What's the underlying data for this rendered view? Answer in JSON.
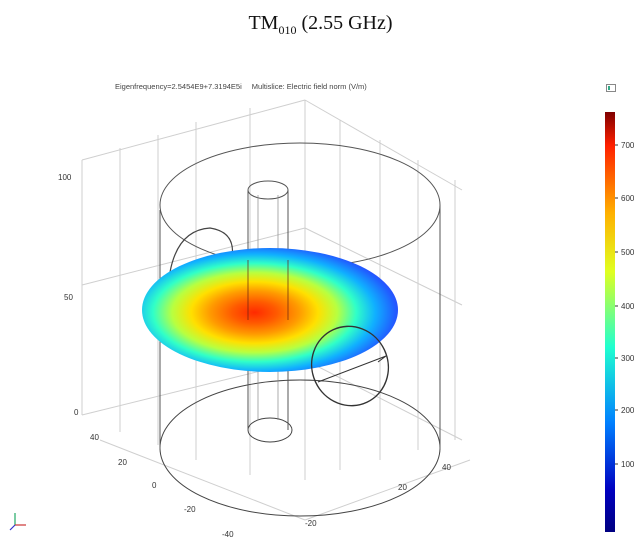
{
  "title": {
    "mode": "TM",
    "subscript": "010",
    "freq": " (2.55 GHz)"
  },
  "plot_header": {
    "eigenfrequency": "Eigenfrequency=2.5454E9+7.3194E5i",
    "multislice": "Multislice: Electric field norm (V/m)"
  },
  "z_axis_ticks": [
    "100",
    "50",
    "0"
  ],
  "x_axis_ticks": [
    "40",
    "20",
    "0",
    "-20",
    "-40"
  ],
  "y_axis_ticks": [
    "40",
    "20",
    "-20"
  ],
  "colorbar": {
    "ticks": [
      "700",
      "600",
      "500",
      "400",
      "300",
      "200",
      "100"
    ],
    "colors": [
      "#7f0000",
      "#ff2000",
      "#ffb000",
      "#e0ff20",
      "#20ffd0",
      "#0080ff",
      "#0000c0",
      "#000080"
    ]
  },
  "icons": {
    "axes_triad": "axes-triad-icon",
    "colorbar": "colorbar-icon"
  }
}
